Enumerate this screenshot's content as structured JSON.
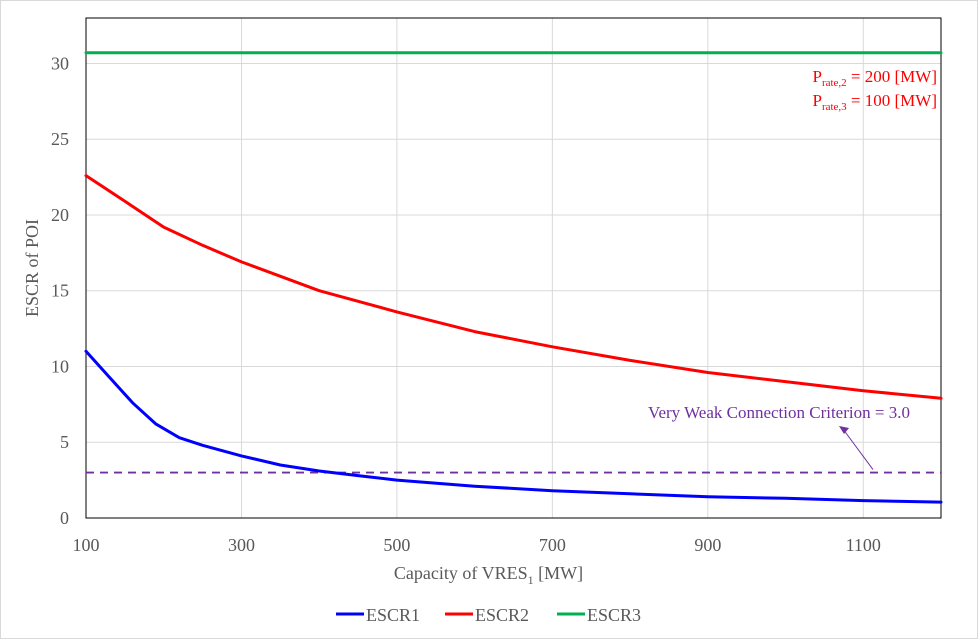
{
  "chart_data": {
    "type": "line",
    "xlabel_main": "Capacity  of VRES",
    "xlabel_sub": "1",
    "xlabel_unit": " [MW]",
    "ylabel": "ESCR  of POI",
    "xlim": [
      100,
      1200
    ],
    "ylim": [
      0,
      33
    ],
    "xticks": [
      100,
      300,
      500,
      700,
      900,
      1100
    ],
    "yticks": [
      0,
      5,
      10,
      15,
      20,
      25,
      30
    ],
    "grid": true,
    "legend_position": "bottom",
    "series": [
      {
        "name": "ESCR1",
        "color": "#0000ff",
        "x": [
          100,
          130,
          160,
          190,
          220,
          250,
          300,
          350,
          400,
          450,
          500,
          600,
          700,
          800,
          900,
          1000,
          1100,
          1200
        ],
        "y": [
          11.0,
          9.3,
          7.6,
          6.2,
          5.3,
          4.8,
          4.1,
          3.5,
          3.1,
          2.8,
          2.5,
          2.1,
          1.8,
          1.6,
          1.4,
          1.3,
          1.15,
          1.05
        ]
      },
      {
        "name": "ESCR2",
        "color": "#ff0000",
        "x": [
          100,
          150,
          200,
          250,
          300,
          400,
          500,
          600,
          700,
          800,
          900,
          1000,
          1100,
          1200
        ],
        "y": [
          22.6,
          20.9,
          19.2,
          18.0,
          16.9,
          15.0,
          13.6,
          12.3,
          11.3,
          10.4,
          9.6,
          9.0,
          8.4,
          7.9
        ]
      },
      {
        "name": "ESCR3",
        "color": "#00b050",
        "x": [
          100,
          1200
        ],
        "y": [
          30.7,
          30.7
        ]
      }
    ],
    "reference_line": {
      "label": "Very  Weak Connection Criterion  = 3.0",
      "value": 3.0,
      "color": "#7030a0"
    },
    "annotations": {
      "rate2": {
        "p": "P",
        "sub": "rate,2",
        "rest": " = 200 [MW]"
      },
      "rate3": {
        "p": "P",
        "sub": "rate,3",
        "rest": " = 100 [MW]"
      },
      "color": "#ff0000"
    }
  }
}
